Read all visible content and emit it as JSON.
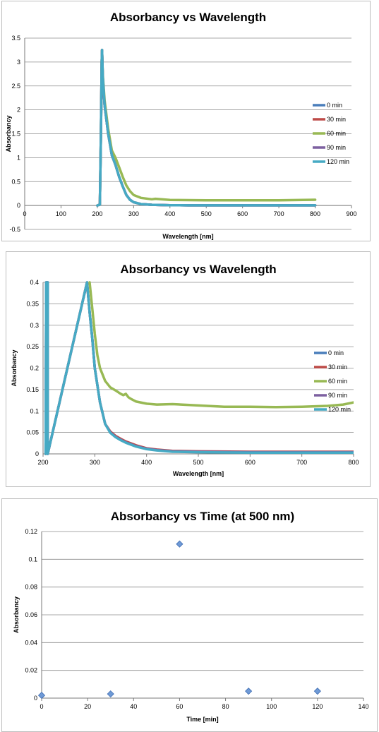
{
  "charts": [
    {
      "type": "line",
      "title": "Absorbancy vs Wavelength",
      "xlabel": "Wavelength [nm]",
      "ylabel": "Absorbancy",
      "xlim": [
        0,
        900
      ],
      "ylim": [
        -0.5,
        3.5
      ],
      "xticks": [
        0,
        100,
        200,
        300,
        400,
        500,
        600,
        700,
        800,
        900
      ],
      "yticks": [
        -0.5,
        0,
        0.5,
        1,
        1.5,
        2,
        2.5,
        3,
        3.5
      ],
      "ytick_labels": [
        "-0.5",
        "0",
        "0.5",
        "1",
        "1.5",
        "2",
        "2.5",
        "3",
        "3.5"
      ],
      "grid": true,
      "legend": "right",
      "series": [
        {
          "name": "0 min",
          "color": "#4a7ebb",
          "x": [
            200,
            207,
            210,
            212,
            213,
            215,
            220,
            230,
            240,
            250,
            260,
            270,
            280,
            290,
            300,
            320,
            350,
            400,
            450,
            500,
            600,
            700,
            800
          ],
          "y": [
            0,
            0.02,
            1.5,
            3.0,
            3.25,
            2.7,
            2.1,
            1.5,
            1.05,
            0.85,
            0.6,
            0.4,
            0.22,
            0.12,
            0.07,
            0.03,
            0.015,
            0.006,
            0.004,
            0.003,
            0.003,
            0.003,
            0.003
          ]
        },
        {
          "name": "30 min",
          "color": "#be4b48",
          "x": [
            200,
            207,
            210,
            212,
            213,
            215,
            220,
            230,
            240,
            250,
            260,
            270,
            280,
            290,
            300,
            320,
            350,
            400,
            450,
            500,
            600,
            700,
            800
          ],
          "y": [
            0,
            0.02,
            1.5,
            3.0,
            3.25,
            2.7,
            2.1,
            1.5,
            1.05,
            0.85,
            0.6,
            0.4,
            0.22,
            0.12,
            0.07,
            0.03,
            0.015,
            0.006,
            0.004,
            0.003,
            0.003,
            0.003,
            0.003
          ]
        },
        {
          "name": "60 min",
          "color": "#98b954",
          "x": [
            200,
            207,
            210,
            212,
            213,
            215,
            220,
            230,
            240,
            250,
            260,
            270,
            280,
            290,
            300,
            320,
            350,
            360,
            400,
            450,
            500,
            600,
            700,
            800
          ],
          "y": [
            0,
            0.02,
            1.5,
            3.0,
            3.25,
            2.75,
            2.2,
            1.6,
            1.15,
            1.0,
            0.8,
            0.6,
            0.42,
            0.3,
            0.22,
            0.16,
            0.13,
            0.14,
            0.115,
            0.112,
            0.11,
            0.11,
            0.11,
            0.12
          ]
        },
        {
          "name": "90 min",
          "color": "#7d60a0",
          "x": [
            200,
            207,
            210,
            212,
            213,
            215,
            220,
            230,
            240,
            250,
            260,
            270,
            280,
            290,
            300,
            320,
            350,
            400,
            450,
            500,
            600,
            700,
            800
          ],
          "y": [
            0,
            0.02,
            1.5,
            3.0,
            3.25,
            2.7,
            2.1,
            1.5,
            1.05,
            0.85,
            0.6,
            0.4,
            0.22,
            0.12,
            0.07,
            0.03,
            0.015,
            0.006,
            0.004,
            0.003,
            0.003,
            0.003,
            0.003
          ]
        },
        {
          "name": "120 min",
          "color": "#46aac4",
          "x": [
            200,
            207,
            210,
            212,
            213,
            215,
            220,
            230,
            240,
            250,
            260,
            270,
            280,
            290,
            300,
            320,
            350,
            400,
            450,
            500,
            600,
            700,
            800
          ],
          "y": [
            0,
            0.02,
            1.5,
            3.0,
            3.25,
            2.7,
            2.1,
            1.5,
            1.05,
            0.85,
            0.6,
            0.4,
            0.22,
            0.12,
            0.07,
            0.03,
            0.015,
            0.006,
            0.004,
            0.003,
            0.003,
            0.003,
            0.003
          ]
        }
      ]
    },
    {
      "type": "line",
      "title": "Absorbancy vs Wavelength",
      "xlabel": "Wavelength [nm]",
      "ylabel": "Absorbancy",
      "xlim": [
        200,
        800
      ],
      "ylim": [
        0,
        0.4
      ],
      "xticks": [
        200,
        300,
        400,
        500,
        600,
        700,
        800
      ],
      "yticks": [
        0,
        0.05,
        0.1,
        0.15,
        0.2,
        0.25,
        0.3,
        0.35,
        0.4
      ],
      "ytick_labels": [
        "0",
        "0.05",
        "0.1",
        "0.15",
        "0.2",
        "0.25",
        "0.3",
        "0.35",
        "0.4"
      ],
      "grid": true,
      "legend": "right",
      "series": [
        {
          "name": "0 min",
          "color": "#4a7ebb",
          "x": [
            205,
            206,
            206,
            209,
            209,
            285,
            290,
            295,
            300,
            310,
            320,
            330,
            340,
            350,
            360,
            380,
            400,
            420,
            450,
            500,
            600,
            700,
            800
          ],
          "y": [
            0,
            0.4,
            0.4,
            0.4,
            0,
            0.4,
            0.33,
            0.27,
            0.2,
            0.12,
            0.07,
            0.05,
            0.04,
            0.033,
            0.027,
            0.018,
            0.012,
            0.009,
            0.006,
            0.005,
            0.004,
            0.004,
            0.004
          ]
        },
        {
          "name": "30 min",
          "color": "#be4b48",
          "x": [
            205,
            206,
            206,
            209,
            209,
            285,
            290,
            295,
            300,
            310,
            320,
            330,
            340,
            350,
            360,
            380,
            400,
            420,
            450,
            500,
            600,
            700,
            800
          ],
          "y": [
            0,
            0.4,
            0.4,
            0.4,
            0,
            0.4,
            0.33,
            0.27,
            0.2,
            0.12,
            0.07,
            0.052,
            0.042,
            0.035,
            0.029,
            0.02,
            0.013,
            0.01,
            0.007,
            0.006,
            0.005,
            0.005,
            0.005
          ]
        },
        {
          "name": "60 min",
          "color": "#98b954",
          "x": [
            290,
            295,
            300,
            305,
            310,
            320,
            330,
            340,
            350,
            355,
            360,
            365,
            370,
            380,
            400,
            420,
            450,
            500,
            550,
            600,
            650,
            700,
            750,
            780,
            800
          ],
          "y": [
            0.4,
            0.34,
            0.28,
            0.23,
            0.2,
            0.17,
            0.155,
            0.148,
            0.14,
            0.137,
            0.14,
            0.132,
            0.128,
            0.122,
            0.117,
            0.115,
            0.116,
            0.113,
            0.11,
            0.11,
            0.109,
            0.11,
            0.112,
            0.115,
            0.12
          ]
        },
        {
          "name": "90 min",
          "color": "#7d60a0",
          "x": [
            205,
            206,
            206,
            209,
            209,
            285,
            290,
            295,
            300,
            310,
            320,
            330,
            340,
            350,
            360,
            380,
            400,
            420,
            450,
            500,
            600,
            700,
            800
          ],
          "y": [
            0,
            0.4,
            0.4,
            0.4,
            0,
            0.4,
            0.33,
            0.27,
            0.2,
            0.12,
            0.07,
            0.05,
            0.04,
            0.033,
            0.027,
            0.018,
            0.012,
            0.009,
            0.006,
            0.005,
            0.004,
            0.004,
            0.004
          ]
        },
        {
          "name": "120 min",
          "color": "#46aac4",
          "x": [
            205,
            206,
            206,
            209,
            209,
            285,
            290,
            295,
            300,
            310,
            320,
            330,
            340,
            350,
            360,
            380,
            400,
            420,
            450,
            500,
            600,
            700,
            800
          ],
          "y": [
            0,
            0.4,
            0.4,
            0.4,
            0,
            0.4,
            0.33,
            0.27,
            0.2,
            0.12,
            0.07,
            0.049,
            0.039,
            0.032,
            0.026,
            0.017,
            0.011,
            0.008,
            0.005,
            0.004,
            0.003,
            0.003,
            0.003
          ]
        }
      ]
    },
    {
      "type": "scatter",
      "title": "Absorbancy vs Time (at 500 nm)",
      "xlabel": "Time [min]",
      "ylabel": "Absorbancy",
      "xlim": [
        0,
        140
      ],
      "ylim": [
        0,
        0.12
      ],
      "xticks": [
        0,
        20,
        40,
        60,
        80,
        100,
        120,
        140
      ],
      "yticks": [
        0,
        0.02,
        0.04,
        0.06,
        0.08,
        0.1,
        0.12
      ],
      "ytick_labels": [
        "0",
        "0.02",
        "0.04",
        "0.06",
        "0.08",
        "0.1",
        "0.12"
      ],
      "grid": true,
      "legend": "none",
      "color": "#4a7ebb",
      "points": [
        {
          "x": 0,
          "y": 0.002
        },
        {
          "x": 30,
          "y": 0.003
        },
        {
          "x": 60,
          "y": 0.111
        },
        {
          "x": 90,
          "y": 0.005
        },
        {
          "x": 120,
          "y": 0.005
        }
      ]
    }
  ]
}
